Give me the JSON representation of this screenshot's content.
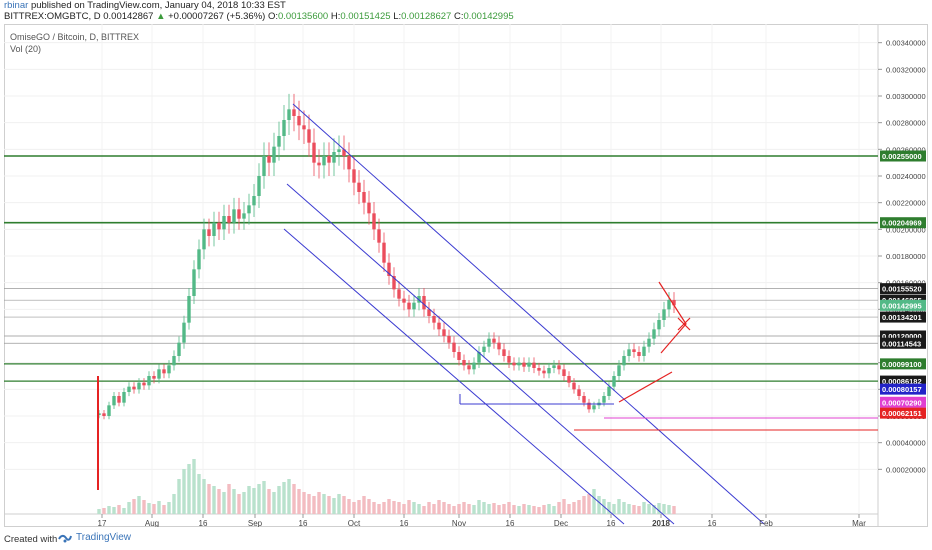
{
  "header": {
    "user": "rbinar",
    "published": "published on TradingView.com, January 04, 2018 10:33 EST",
    "symbol": "BITTREX:OMGBTC, D",
    "last": "0.00142867",
    "change": "+0.00007267 (+5.36%)",
    "o_label": "O:",
    "o": "0.00135600",
    "h_label": "H:",
    "h": "0.00151425",
    "l_label": "L:",
    "l": "0.00128627",
    "c_label": "C:",
    "c": "0.00142995"
  },
  "legend": {
    "title": "OmiseGO / Bitcoin, D, BITTREX",
    "vol": "Vol (20)"
  },
  "footer": {
    "created": "Created with",
    "brand": "TradingView"
  },
  "colors": {
    "up": "#53b987",
    "down": "#eb4d5c",
    "channel": "#3b3bd1",
    "green_line": "#2e7d2e",
    "red_line": "#e52323"
  },
  "chart_data": {
    "type": "candlestick",
    "x_ticks": [
      "17",
      "Aug",
      "16",
      "Sep",
      "16",
      "Oct",
      "16",
      "Nov",
      "16",
      "Dec",
      "16",
      "2018",
      "16",
      "Feb",
      "Mar"
    ],
    "y_ticks": [
      "0.00340000",
      "0.00320000",
      "0.00300000",
      "0.00280000",
      "0.00260000",
      "0.00240000",
      "0.00220000",
      "0.00200000",
      "0.00180000",
      "0.00160000",
      "0.00140000",
      "0.00120000",
      "0.00100000",
      "0.00080000",
      "0.00060000",
      "0.00040000",
      "0.00020000"
    ],
    "price_labels": [
      {
        "value": "0.00255000",
        "bg": "#2e7d2e"
      },
      {
        "value": "0.00204969",
        "bg": "#2e7d2e"
      },
      {
        "value": "0.00155520",
        "bg": "#1a1a1a"
      },
      {
        "value": "0.00146865",
        "bg": "#1a1a1a"
      },
      {
        "value": "0.00142995",
        "bg": "#53b987"
      },
      {
        "value": "0.00134201",
        "bg": "#1a1a1a"
      },
      {
        "value": "0.00120000",
        "bg": "#1a1a1a"
      },
      {
        "value": "0.00114543",
        "bg": "#1a1a1a"
      },
      {
        "value": "0.00099100",
        "bg": "#2e7d2e"
      },
      {
        "value": "0.00086182",
        "bg": "#1a1a1a"
      },
      {
        "value": "0.00080157",
        "bg": "#2323c8"
      },
      {
        "value": "0.00070290",
        "bg": "#e040d0"
      },
      {
        "value": "0.00062151",
        "bg": "#e52323"
      }
    ],
    "y_range": [
      0.0,
      0.0035
    ],
    "horizontal_levels": [
      0.00255,
      0.00204969,
      0.0015552,
      0.00146865,
      0.00134201,
      0.0012,
      0.00114543,
      0.000991,
      0.00086182
    ],
    "closes": [
      0.00062,
      0.0006,
      0.00068,
      0.00075,
      0.0007,
      0.00078,
      0.00082,
      0.0008,
      0.00085,
      0.00083,
      0.0009,
      0.00088,
      0.00095,
      0.00092,
      0.00098,
      0.00105,
      0.00115,
      0.0013,
      0.0015,
      0.0017,
      0.00185,
      0.002,
      0.00195,
      0.00205,
      0.002,
      0.0021,
      0.00205,
      0.00215,
      0.00208,
      0.00212,
      0.00218,
      0.00225,
      0.0024,
      0.00255,
      0.0025,
      0.00262,
      0.0027,
      0.00282,
      0.0029,
      0.00285,
      0.00278,
      0.00275,
      0.00265,
      0.0025,
      0.00248,
      0.00255,
      0.0025,
      0.00258,
      0.0026,
      0.00255,
      0.00245,
      0.00235,
      0.00228,
      0.0022,
      0.00212,
      0.002,
      0.0019,
      0.00175,
      0.00165,
      0.00155,
      0.00148,
      0.00145,
      0.0014,
      0.00145,
      0.0015,
      0.0014,
      0.00135,
      0.0013,
      0.00125,
      0.0012,
      0.00115,
      0.00108,
      0.00102,
      0.00098,
      0.00095,
      0.001,
      0.00108,
      0.00112,
      0.00118,
      0.00115,
      0.0011,
      0.00105,
      0.001,
      0.00098,
      0.001,
      0.00097,
      0.001,
      0.00096,
      0.00094,
      0.00092,
      0.00096,
      0.00098,
      0.00095,
      0.0009,
      0.00085,
      0.0008,
      0.00075,
      0.0007,
      0.00065,
      0.00068,
      0.0007,
      0.00075,
      0.00082,
      0.0009,
      0.00098,
      0.00105,
      0.0011,
      0.00108,
      0.00105,
      0.00112,
      0.00118,
      0.00125,
      0.00132,
      0.0014,
      0.00147,
      0.00143
    ],
    "volumes": [
      0.05,
      0.06,
      0.08,
      0.07,
      0.09,
      0.06,
      0.12,
      0.15,
      0.18,
      0.14,
      0.11,
      0.1,
      0.13,
      0.09,
      0.12,
      0.2,
      0.35,
      0.45,
      0.5,
      0.55,
      0.4,
      0.35,
      0.3,
      0.28,
      0.25,
      0.22,
      0.3,
      0.25,
      0.2,
      0.22,
      0.28,
      0.26,
      0.3,
      0.33,
      0.25,
      0.22,
      0.28,
      0.32,
      0.35,
      0.3,
      0.25,
      0.22,
      0.2,
      0.18,
      0.22,
      0.2,
      0.18,
      0.16,
      0.2,
      0.18,
      0.15,
      0.12,
      0.14,
      0.18,
      0.15,
      0.12,
      0.1,
      0.12,
      0.15,
      0.13,
      0.12,
      0.1,
      0.14,
      0.12,
      0.1,
      0.08,
      0.12,
      0.1,
      0.14,
      0.12,
      0.1,
      0.08,
      0.1,
      0.12,
      0.1,
      0.09,
      0.14,
      0.12,
      0.1,
      0.11,
      0.09,
      0.1,
      0.12,
      0.09,
      0.08,
      0.1,
      0.09,
      0.08,
      0.07,
      0.09,
      0.1,
      0.08,
      0.12,
      0.15,
      0.1,
      0.12,
      0.14,
      0.18,
      0.2,
      0.25,
      0.18,
      0.15,
      0.12,
      0.1,
      0.15,
      0.12,
      0.1,
      0.09,
      0.08,
      0.12,
      0.1,
      0.09,
      0.11,
      0.1,
      0.09,
      0.08
    ],
    "title": "OmiseGO / Bitcoin, D, BITTREX"
  }
}
